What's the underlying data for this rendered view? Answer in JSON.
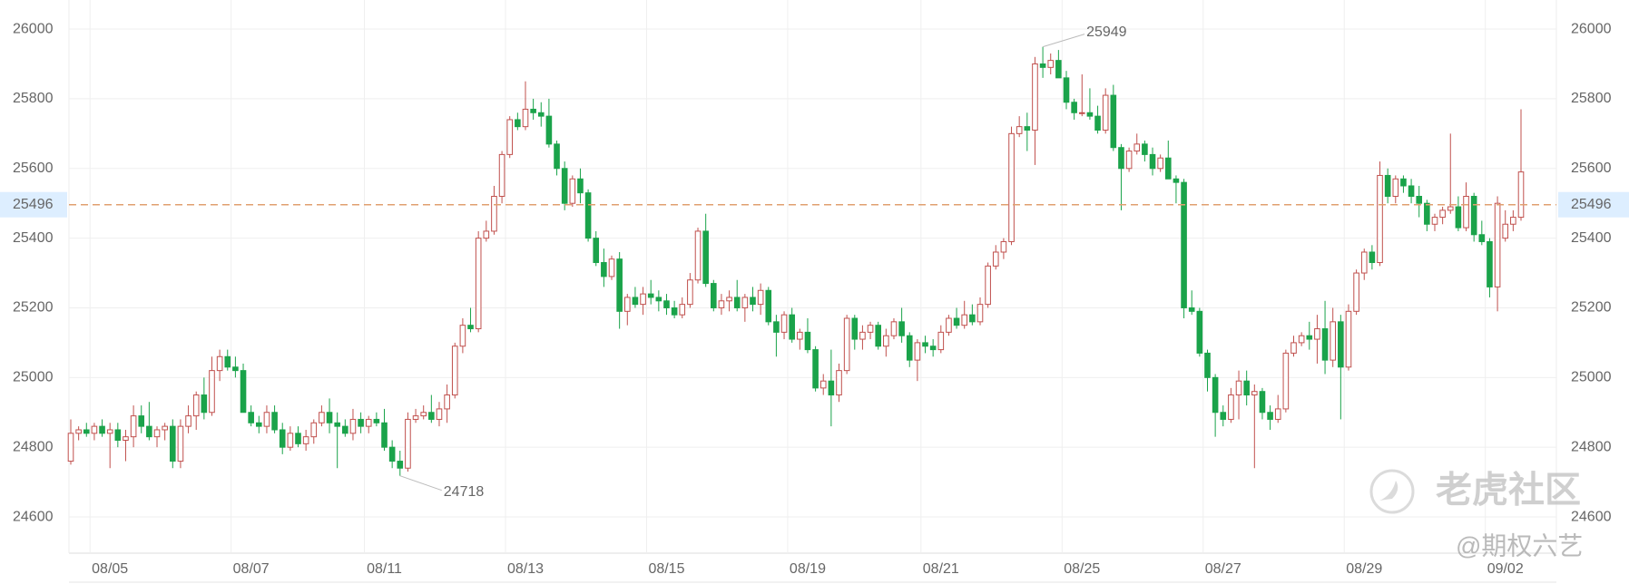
{
  "chart_data": {
    "type": "candlestick",
    "ylim": [
      24496,
      26060
    ],
    "yticks": [
      24600,
      24800,
      25000,
      25200,
      25400,
      25600,
      25800,
      26000
    ],
    "grid": true,
    "up_color": "#c0504d",
    "down_color": "#1aa34a",
    "price_line_color": "#e0a070",
    "current_price": 25496,
    "high_label": 25949,
    "low_label": 24718,
    "watermark": [
      "老虎社区",
      "@期权六艺"
    ],
    "categories": [
      null,
      null,
      null,
      null,
      null,
      "08/05",
      null,
      null,
      null,
      null,
      null,
      null,
      null,
      null,
      null,
      null,
      null,
      null,
      null,
      null,
      null,
      null,
      null,
      "08/07",
      null,
      null,
      null,
      null,
      null,
      null,
      null,
      null,
      null,
      null,
      null,
      null,
      null,
      null,
      null,
      null,
      "08/11",
      null,
      null,
      null,
      null,
      null,
      null,
      null,
      null,
      null,
      null,
      null,
      null,
      null,
      null,
      null,
      null,
      null,
      "08/13",
      null,
      null,
      null,
      null,
      null,
      null,
      null,
      null,
      null,
      null,
      null,
      null,
      null,
      null,
      null,
      null,
      null,
      "08/15",
      null,
      null,
      null,
      null,
      null,
      null,
      null,
      null,
      null,
      null,
      null,
      null,
      null,
      null,
      null,
      null,
      null,
      "08/19",
      null,
      null,
      null,
      null,
      null,
      null,
      null,
      null,
      null,
      null,
      null,
      null,
      null,
      null,
      null,
      null,
      "08/21",
      null,
      null,
      null,
      null,
      null,
      null,
      null,
      null,
      null,
      null,
      null,
      null,
      null,
      null,
      null,
      null,
      null,
      "08/25",
      null,
      null,
      null,
      null,
      null,
      null,
      null,
      null,
      null,
      null,
      null,
      null,
      null,
      null,
      null,
      null,
      null,
      "08/27",
      null,
      null,
      null,
      null,
      null,
      null,
      null,
      null,
      null,
      null,
      null,
      null,
      null,
      null,
      null,
      null,
      null,
      "08/29",
      null,
      null,
      null,
      null,
      null,
      null,
      null,
      null,
      null,
      null,
      null,
      null,
      null,
      null,
      null,
      null,
      null,
      "09/02",
      null,
      null
    ],
    "ohlc": [
      [
        24760,
        24880,
        24750,
        24840
      ],
      [
        24840,
        24860,
        24820,
        24850
      ],
      [
        24850,
        24870,
        24830,
        24840
      ],
      [
        24840,
        24870,
        24820,
        24860
      ],
      [
        24860,
        24880,
        24830,
        24840
      ],
      [
        24840,
        24870,
        24740,
        24850
      ],
      [
        24850,
        24870,
        24800,
        24820
      ],
      [
        24820,
        24850,
        24760,
        24830
      ],
      [
        24830,
        24920,
        24800,
        24890
      ],
      [
        24890,
        24920,
        24840,
        24860
      ],
      [
        24860,
        24930,
        24820,
        24830
      ],
      [
        24830,
        24860,
        24800,
        24850
      ],
      [
        24850,
        24870,
        24820,
        24860
      ],
      [
        24860,
        24880,
        24740,
        24760
      ],
      [
        24760,
        24880,
        24740,
        24860
      ],
      [
        24860,
        24920,
        24840,
        24890
      ],
      [
        24890,
        24960,
        24850,
        24950
      ],
      [
        24950,
        25000,
        24880,
        24900
      ],
      [
        24900,
        25060,
        24890,
        25020
      ],
      [
        25020,
        25080,
        24990,
        25060
      ],
      [
        25060,
        25080,
        25020,
        25030
      ],
      [
        25030,
        25060,
        25000,
        25020
      ],
      [
        25020,
        25040,
        24900,
        24900
      ],
      [
        24900,
        24920,
        24860,
        24870
      ],
      [
        24870,
        24890,
        24840,
        24860
      ],
      [
        24860,
        24920,
        24840,
        24900
      ],
      [
        24900,
        24920,
        24840,
        24850
      ],
      [
        24850,
        24870,
        24780,
        24800
      ],
      [
        24800,
        24860,
        24790,
        24840
      ],
      [
        24840,
        24860,
        24800,
        24810
      ],
      [
        24810,
        24850,
        24790,
        24830
      ],
      [
        24830,
        24880,
        24810,
        24870
      ],
      [
        24870,
        24920,
        24860,
        24900
      ],
      [
        24900,
        24940,
        24840,
        24870
      ],
      [
        24870,
        24900,
        24740,
        24860
      ],
      [
        24860,
        24880,
        24830,
        24840
      ],
      [
        24840,
        24910,
        24820,
        24880
      ],
      [
        24880,
        24900,
        24840,
        24860
      ],
      [
        24860,
        24890,
        24840,
        24880
      ],
      [
        24880,
        24900,
        24860,
        24870
      ],
      [
        24870,
        24910,
        24790,
        24800
      ],
      [
        24800,
        24820,
        24740,
        24760
      ],
      [
        24760,
        24790,
        24718,
        24740
      ],
      [
        24740,
        24900,
        24730,
        24880
      ],
      [
        24880,
        24910,
        24870,
        24890
      ],
      [
        24890,
        24920,
        24880,
        24900
      ],
      [
        24900,
        24950,
        24870,
        24880
      ],
      [
        24880,
        24930,
        24860,
        24910
      ],
      [
        24910,
        24980,
        24870,
        24950
      ],
      [
        24950,
        25100,
        24940,
        25090
      ],
      [
        25090,
        25170,
        25070,
        25150
      ],
      [
        25150,
        25200,
        25130,
        25140
      ],
      [
        25140,
        25420,
        25130,
        25400
      ],
      [
        25400,
        25450,
        25390,
        25420
      ],
      [
        25420,
        25550,
        25410,
        25520
      ],
      [
        25520,
        25650,
        25500,
        25640
      ],
      [
        25640,
        25750,
        25630,
        25740
      ],
      [
        25740,
        25760,
        25710,
        25720
      ],
      [
        25720,
        25850,
        25710,
        25770
      ],
      [
        25770,
        25800,
        25740,
        25760
      ],
      [
        25760,
        25790,
        25720,
        25750
      ],
      [
        25750,
        25800,
        25660,
        25670
      ],
      [
        25670,
        25680,
        25580,
        25600
      ],
      [
        25600,
        25620,
        25480,
        25500
      ],
      [
        25500,
        25580,
        25490,
        25570
      ],
      [
        25570,
        25600,
        25500,
        25530
      ],
      [
        25530,
        25540,
        25390,
        25400
      ],
      [
        25400,
        25420,
        25320,
        25330
      ],
      [
        25330,
        25370,
        25260,
        25290
      ],
      [
        25290,
        25350,
        25280,
        25340
      ],
      [
        25340,
        25360,
        25140,
        25190
      ],
      [
        25190,
        25240,
        25150,
        25230
      ],
      [
        25230,
        25260,
        25200,
        25210
      ],
      [
        25210,
        25260,
        25180,
        25240
      ],
      [
        25240,
        25280,
        25210,
        25230
      ],
      [
        25230,
        25250,
        25190,
        25220
      ],
      [
        25220,
        25240,
        25180,
        25200
      ],
      [
        25200,
        25220,
        25170,
        25180
      ],
      [
        25180,
        25230,
        25170,
        25210
      ],
      [
        25210,
        25300,
        25200,
        25280
      ],
      [
        25280,
        25430,
        25270,
        25420
      ],
      [
        25420,
        25470,
        25260,
        25270
      ],
      [
        25270,
        25280,
        25190,
        25200
      ],
      [
        25200,
        25240,
        25180,
        25220
      ],
      [
        25220,
        25250,
        25190,
        25230
      ],
      [
        25230,
        25280,
        25190,
        25200
      ],
      [
        25200,
        25240,
        25160,
        25230
      ],
      [
        25230,
        25260,
        25190,
        25210
      ],
      [
        25210,
        25270,
        25180,
        25250
      ],
      [
        25250,
        25260,
        25150,
        25160
      ],
      [
        25160,
        25180,
        25060,
        25130
      ],
      [
        25130,
        25190,
        25110,
        25180
      ],
      [
        25180,
        25200,
        25100,
        25110
      ],
      [
        25110,
        25140,
        25080,
        25130
      ],
      [
        25130,
        25170,
        25070,
        25080
      ],
      [
        25080,
        25090,
        24960,
        24970
      ],
      [
        24970,
        25010,
        24950,
        24990
      ],
      [
        24990,
        25080,
        24860,
        24950
      ],
      [
        24950,
        25040,
        24930,
        25020
      ],
      [
        25020,
        25180,
        25010,
        25170
      ],
      [
        25170,
        25180,
        25080,
        25110
      ],
      [
        25110,
        25150,
        25080,
        25130
      ],
      [
        25130,
        25160,
        25110,
        25150
      ],
      [
        25150,
        25160,
        25080,
        25090
      ],
      [
        25090,
        25140,
        25060,
        25120
      ],
      [
        25120,
        25170,
        25110,
        25160
      ],
      [
        25160,
        25200,
        25100,
        25120
      ],
      [
        25120,
        25130,
        25030,
        25050
      ],
      [
        25050,
        25110,
        24990,
        25100
      ],
      [
        25100,
        25120,
        25070,
        25090
      ],
      [
        25090,
        25110,
        25060,
        25080
      ],
      [
        25080,
        25150,
        25070,
        25130
      ],
      [
        25130,
        25180,
        25120,
        25170
      ],
      [
        25170,
        25200,
        25140,
        25150
      ],
      [
        25150,
        25220,
        25140,
        25180
      ],
      [
        25180,
        25210,
        25150,
        25160
      ],
      [
        25160,
        25230,
        25150,
        25210
      ],
      [
        25210,
        25330,
        25200,
        25320
      ],
      [
        25320,
        25380,
        25310,
        25360
      ],
      [
        25360,
        25400,
        25340,
        25390
      ],
      [
        25390,
        25720,
        25380,
        25700
      ],
      [
        25700,
        25750,
        25690,
        25720
      ],
      [
        25720,
        25760,
        25650,
        25710
      ],
      [
        25710,
        25920,
        25610,
        25900
      ],
      [
        25900,
        25949,
        25860,
        25890
      ],
      [
        25890,
        25930,
        25870,
        25910
      ],
      [
        25910,
        25940,
        25860,
        25860
      ],
      [
        25860,
        25880,
        25770,
        25790
      ],
      [
        25790,
        25800,
        25740,
        25760
      ],
      [
        25760,
        25870,
        25750,
        25760
      ],
      [
        25760,
        25830,
        25740,
        25750
      ],
      [
        25750,
        25780,
        25700,
        25710
      ],
      [
        25710,
        25830,
        25700,
        25810
      ],
      [
        25810,
        25840,
        25650,
        25660
      ],
      [
        25660,
        25670,
        25480,
        25600
      ],
      [
        25600,
        25660,
        25590,
        25650
      ],
      [
        25650,
        25700,
        25640,
        25670
      ],
      [
        25670,
        25680,
        25620,
        25640
      ],
      [
        25640,
        25660,
        25580,
        25600
      ],
      [
        25600,
        25640,
        25590,
        25630
      ],
      [
        25630,
        25680,
        25570,
        25570
      ],
      [
        25570,
        25580,
        25500,
        25560
      ],
      [
        25560,
        25570,
        25170,
        25200
      ],
      [
        25200,
        25250,
        25180,
        25190
      ],
      [
        25190,
        25200,
        25060,
        25070
      ],
      [
        25070,
        25080,
        24960,
        25000
      ],
      [
        25000,
        25010,
        24830,
        24900
      ],
      [
        24900,
        24920,
        24860,
        24880
      ],
      [
        24880,
        24970,
        24870,
        24950
      ],
      [
        24950,
        25020,
        24880,
        24990
      ],
      [
        24990,
        25020,
        24920,
        24950
      ],
      [
        24950,
        24980,
        24740,
        24960
      ],
      [
        24960,
        24970,
        24880,
        24900
      ],
      [
        24900,
        24920,
        24850,
        24880
      ],
      [
        24880,
        24950,
        24870,
        24910
      ],
      [
        24910,
        25080,
        24900,
        25070
      ],
      [
        25070,
        25120,
        25060,
        25100
      ],
      [
        25100,
        25130,
        25090,
        25120
      ],
      [
        25120,
        25160,
        25080,
        25110
      ],
      [
        25110,
        25180,
        25040,
        25140
      ],
      [
        25140,
        25220,
        25010,
        25050
      ],
      [
        25050,
        25200,
        25030,
        25160
      ],
      [
        25160,
        25180,
        24880,
        25030
      ],
      [
        25030,
        25210,
        25020,
        25190
      ],
      [
        25190,
        25310,
        25180,
        25300
      ],
      [
        25300,
        25370,
        25280,
        25360
      ],
      [
        25360,
        25380,
        25310,
        25330
      ],
      [
        25330,
        25620,
        25320,
        25580
      ],
      [
        25580,
        25600,
        25500,
        25520
      ],
      [
        25520,
        25580,
        25500,
        25570
      ],
      [
        25570,
        25580,
        25530,
        25550
      ],
      [
        25550,
        25570,
        25500,
        25520
      ],
      [
        25520,
        25550,
        25460,
        25500
      ],
      [
        25500,
        25510,
        25420,
        25440
      ],
      [
        25440,
        25470,
        25420,
        25460
      ],
      [
        25460,
        25490,
        25440,
        25480
      ],
      [
        25480,
        25700,
        25470,
        25490
      ],
      [
        25490,
        25520,
        25420,
        25430
      ],
      [
        25430,
        25560,
        25420,
        25520
      ],
      [
        25520,
        25530,
        25390,
        25410
      ],
      [
        25410,
        25450,
        25380,
        25390
      ],
      [
        25390,
        25400,
        25230,
        25260
      ],
      [
        25260,
        25520,
        25190,
        25500
      ],
      [
        25400,
        25480,
        25390,
        25440
      ],
      [
        25440,
        25480,
        25420,
        25460
      ],
      [
        25460,
        25770,
        25450,
        25590
      ]
    ]
  }
}
